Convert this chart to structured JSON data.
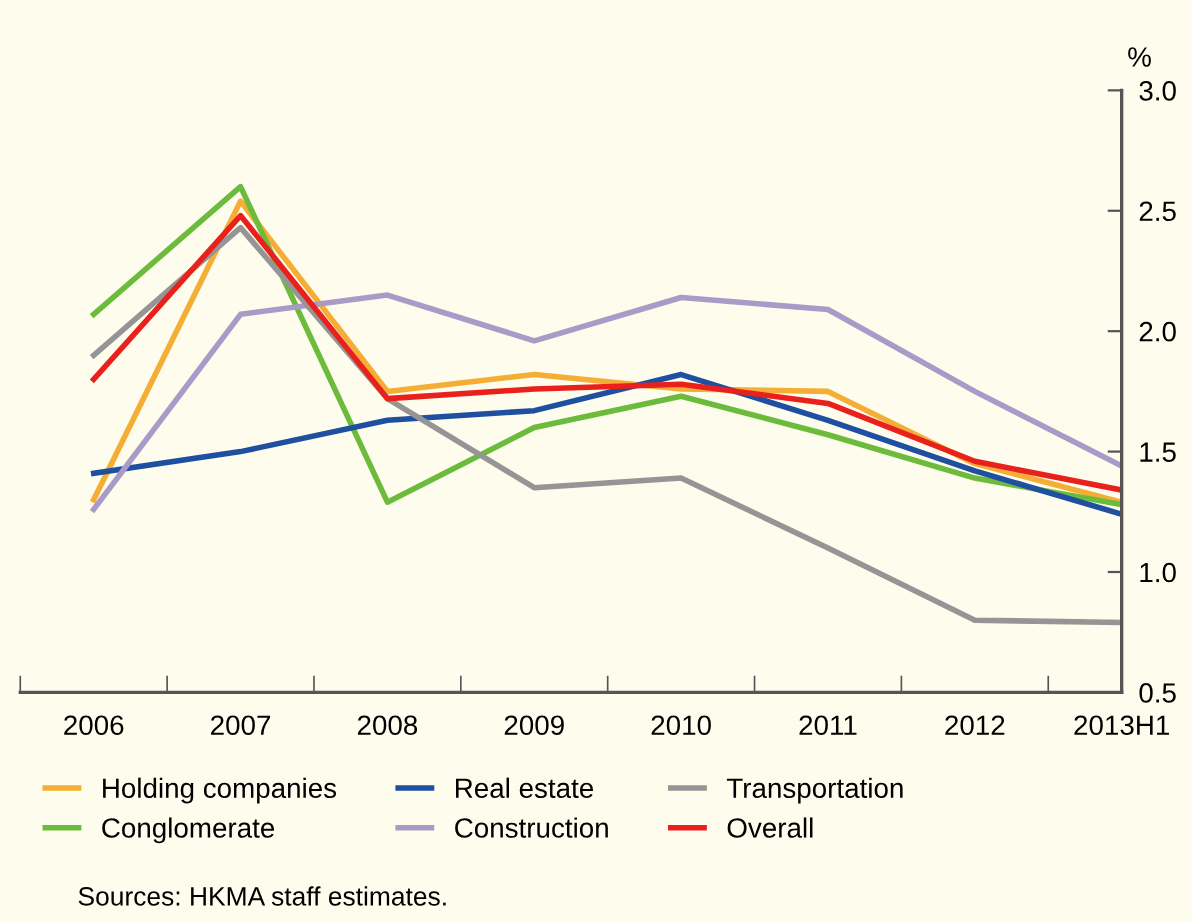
{
  "chart_data": {
    "type": "line",
    "ylabel": "%",
    "categories": [
      "2006",
      "2007",
      "2008",
      "2009",
      "2010",
      "2011",
      "2012",
      "2013H1"
    ],
    "series": [
      {
        "name": "Holding companies",
        "color": "#f5ae35",
        "values": [
          1.3,
          2.54,
          1.75,
          1.82,
          1.76,
          1.75,
          1.45,
          1.29
        ]
      },
      {
        "name": "Conglomerate",
        "color": "#6cbb3c",
        "values": [
          2.07,
          2.6,
          1.29,
          1.6,
          1.73,
          1.57,
          1.39,
          1.28
        ]
      },
      {
        "name": "Real estate",
        "color": "#1f4fa0",
        "values": [
          1.41,
          1.5,
          1.63,
          1.67,
          1.82,
          1.63,
          1.42,
          1.24
        ]
      },
      {
        "name": "Construction",
        "color": "#a99ac8",
        "values": [
          1.26,
          2.07,
          2.15,
          1.96,
          2.14,
          2.09,
          1.75,
          1.44
        ]
      },
      {
        "name": "Transportation",
        "color": "#959595",
        "values": [
          1.9,
          2.43,
          1.72,
          1.35,
          1.39,
          1.1,
          0.8,
          0.79
        ]
      },
      {
        "name": "Overall",
        "color": "#e8211d",
        "values": [
          1.8,
          2.48,
          1.72,
          1.76,
          1.78,
          1.7,
          1.46,
          1.34
        ]
      }
    ],
    "ylim": [
      0.5,
      3.0
    ],
    "yticks": [
      {
        "value": 0.5,
        "label": "0.5"
      },
      {
        "value": 1.0,
        "label": "1.0"
      },
      {
        "value": 1.5,
        "label": "1.5"
      },
      {
        "value": 2.0,
        "label": "2.0"
      },
      {
        "value": 2.5,
        "label": "2.5"
      },
      {
        "value": 3.0,
        "label": "3.0"
      }
    ],
    "grid": false,
    "legend": "bottom",
    "marker": "none",
    "line_style": "solid",
    "annotations": [
      "Sources: HKMA staff estimates."
    ]
  }
}
